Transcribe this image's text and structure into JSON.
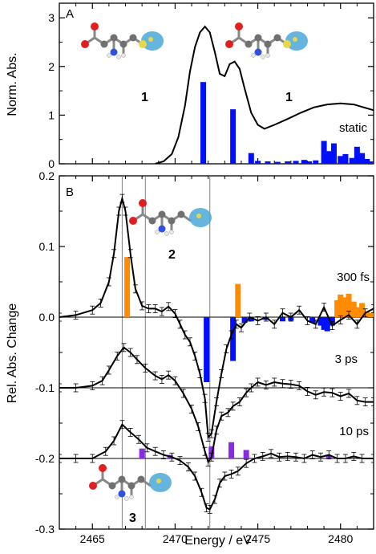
{
  "colors": {
    "line": "#000000",
    "bar_static": "#0010ff",
    "bar_300fs_neg": "#0010ff",
    "bar_300fs_pos": "#ff8c00",
    "bar_10ps": "#8a2be2",
    "guide": "#808080",
    "orbital": "#4aa8d8",
    "sulfur": "#e6d84a",
    "oxygen": "#e02020",
    "nitrogen": "#3050e0",
    "carbon": "#707070"
  },
  "chart_data": [
    {
      "panel": "A",
      "type": "line",
      "xlabel": "",
      "ylabel": "Norm. Abs.",
      "xlim": [
        2463,
        2482
      ],
      "ylim": [
        0,
        3.3
      ],
      "x_ticks": [
        2465,
        2470,
        2475,
        2480
      ],
      "y_ticks": [
        0,
        1,
        2,
        3
      ],
      "y_tick_labels": [
        "0",
        "1",
        "2",
        "3"
      ],
      "annotation_label": "static",
      "molecule_labels": [
        "1",
        "1"
      ],
      "series": [
        {
          "kind": "line",
          "points": [
            [
              2468.8,
              0.0
            ],
            [
              2469.3,
              0.05
            ],
            [
              2469.8,
              0.2
            ],
            [
              2470.2,
              0.55
            ],
            [
              2470.6,
              1.2
            ],
            [
              2470.9,
              1.9
            ],
            [
              2471.2,
              2.4
            ],
            [
              2471.5,
              2.7
            ],
            [
              2471.8,
              2.82
            ],
            [
              2472.1,
              2.7
            ],
            [
              2472.4,
              2.3
            ],
            [
              2472.7,
              1.85
            ],
            [
              2473.0,
              1.8
            ],
            [
              2473.3,
              2.05
            ],
            [
              2473.6,
              2.1
            ],
            [
              2473.9,
              1.95
            ],
            [
              2474.2,
              1.55
            ],
            [
              2474.6,
              1.05
            ],
            [
              2475.0,
              0.8
            ],
            [
              2475.4,
              0.72
            ],
            [
              2476.0,
              0.8
            ],
            [
              2476.8,
              0.92
            ],
            [
              2477.6,
              1.05
            ],
            [
              2478.4,
              1.16
            ],
            [
              2479.2,
              1.22
            ],
            [
              2480.0,
              1.24
            ],
            [
              2480.8,
              1.22
            ],
            [
              2481.5,
              1.15
            ],
            [
              2482.0,
              1.1
            ]
          ]
        },
        {
          "kind": "bar",
          "points": [
            [
              2471.7,
              1.68
            ],
            [
              2473.5,
              1.12
            ],
            [
              2474.6,
              0.22
            ],
            [
              2475.0,
              0.06
            ],
            [
              2475.6,
              0.05
            ],
            [
              2476.2,
              0.04
            ],
            [
              2476.8,
              0.05
            ],
            [
              2477.3,
              0.06
            ],
            [
              2477.8,
              0.08
            ],
            [
              2478.1,
              0.05
            ],
            [
              2478.5,
              0.07
            ],
            [
              2479.0,
              0.47
            ],
            [
              2479.3,
              0.26
            ],
            [
              2479.6,
              0.42
            ],
            [
              2480.0,
              0.16
            ],
            [
              2480.3,
              0.2
            ],
            [
              2480.7,
              0.12
            ],
            [
              2481.0,
              0.35
            ],
            [
              2481.3,
              0.22
            ],
            [
              2481.6,
              0.1
            ],
            [
              2481.9,
              0.05
            ]
          ]
        }
      ]
    },
    {
      "panel": "B",
      "type": "line",
      "xlabel": "Energy / eV",
      "ylabel": "Rel. Abs. Change",
      "xlim": [
        2463,
        2482
      ],
      "ylim": [
        -0.3,
        0.2
      ],
      "x_ticks": [
        2465,
        2470,
        2475,
        2480
      ],
      "x_tick_labels": [
        "2465",
        "2470",
        "2475",
        "2480"
      ],
      "y_ticks": [
        -0.3,
        -0.2,
        -0.1,
        0.0,
        0.1,
        0.2
      ],
      "y_tick_labels": [
        "-0.3",
        "-0.2",
        "-0.1",
        "0.0",
        "0.1",
        "0.2"
      ],
      "guide_lines_x": [
        2466.8,
        2468.2,
        2472.1
      ],
      "annotation_labels": [
        "300 fs",
        "3 ps",
        "10 ps"
      ],
      "molecule_labels": [
        "2",
        "3"
      ],
      "series": [
        {
          "kind": "line",
          "points": [
            [
              2463,
              0.0
            ],
            [
              2464,
              0.003
            ],
            [
              2465,
              0.01
            ],
            [
              2465.5,
              0.02
            ],
            [
              2466,
              0.05
            ],
            [
              2466.3,
              0.09
            ],
            [
              2466.6,
              0.15
            ],
            [
              2466.8,
              0.168
            ],
            [
              2467.0,
              0.15
            ],
            [
              2467.3,
              0.09
            ],
            [
              2467.6,
              0.04
            ],
            [
              2468.0,
              0.016
            ],
            [
              2468.4,
              0.012
            ],
            [
              2468.8,
              0.012
            ],
            [
              2469.2,
              0.008
            ],
            [
              2469.6,
              0.015
            ],
            [
              2470.0,
              0.005
            ],
            [
              2470.3,
              -0.01
            ],
            [
              2470.6,
              -0.025
            ],
            [
              2470.9,
              -0.035
            ],
            [
              2471.2,
              -0.055
            ],
            [
              2471.5,
              -0.08
            ],
            [
              2471.8,
              -0.115
            ],
            [
              2472.0,
              -0.17
            ],
            [
              2472.2,
              -0.165
            ],
            [
              2472.5,
              -0.12
            ],
            [
              2472.8,
              -0.08
            ],
            [
              2473.1,
              -0.045
            ],
            [
              2473.4,
              -0.025
            ],
            [
              2473.7,
              -0.01
            ],
            [
              2474.0,
              -0.015
            ],
            [
              2474.5,
              0.0
            ],
            [
              2475.0,
              -0.005
            ],
            [
              2475.5,
              0.0
            ],
            [
              2476.0,
              -0.01
            ],
            [
              2476.5,
              0.006
            ],
            [
              2477.0,
              0.0
            ],
            [
              2477.5,
              0.01
            ],
            [
              2478.0,
              -0.005
            ],
            [
              2478.5,
              -0.01
            ],
            [
              2479.0,
              0.014
            ],
            [
              2479.5,
              -0.012
            ],
            [
              2480.0,
              -0.004
            ],
            [
              2480.5,
              0.003
            ],
            [
              2481.0,
              -0.01
            ],
            [
              2481.5,
              0.006
            ],
            [
              2482.0,
              0.012
            ]
          ]
        },
        {
          "kind": "line",
          "points": [
            [
              2463,
              -0.1
            ],
            [
              2464,
              -0.1
            ],
            [
              2465,
              -0.097
            ],
            [
              2465.6,
              -0.09
            ],
            [
              2466.0,
              -0.075
            ],
            [
              2466.5,
              -0.055
            ],
            [
              2466.9,
              -0.043
            ],
            [
              2467.3,
              -0.05
            ],
            [
              2467.7,
              -0.06
            ],
            [
              2468.2,
              -0.072
            ],
            [
              2468.8,
              -0.083
            ],
            [
              2469.2,
              -0.088
            ],
            [
              2469.6,
              -0.082
            ],
            [
              2470.0,
              -0.09
            ],
            [
              2470.5,
              -0.108
            ],
            [
              2471.0,
              -0.13
            ],
            [
              2471.4,
              -0.155
            ],
            [
              2471.8,
              -0.19
            ],
            [
              2472.0,
              -0.205
            ],
            [
              2472.2,
              -0.198
            ],
            [
              2472.5,
              -0.16
            ],
            [
              2472.8,
              -0.14
            ],
            [
              2473.2,
              -0.135
            ],
            [
              2473.5,
              -0.126
            ],
            [
              2473.9,
              -0.12
            ],
            [
              2474.3,
              -0.107
            ],
            [
              2474.6,
              -0.1
            ],
            [
              2475.0,
              -0.092
            ],
            [
              2475.5,
              -0.096
            ],
            [
              2476.0,
              -0.092
            ],
            [
              2476.5,
              -0.094
            ],
            [
              2477.0,
              -0.095
            ],
            [
              2477.5,
              -0.097
            ],
            [
              2478.0,
              -0.105
            ],
            [
              2478.5,
              -0.11
            ],
            [
              2479.0,
              -0.106
            ],
            [
              2479.5,
              -0.107
            ],
            [
              2480.0,
              -0.112
            ],
            [
              2480.5,
              -0.108
            ],
            [
              2481.0,
              -0.118
            ],
            [
              2481.5,
              -0.12
            ],
            [
              2482.0,
              -0.12
            ]
          ]
        },
        {
          "kind": "line",
          "points": [
            [
              2463,
              -0.2
            ],
            [
              2464,
              -0.2
            ],
            [
              2465,
              -0.2
            ],
            [
              2465.8,
              -0.19
            ],
            [
              2466.3,
              -0.175
            ],
            [
              2466.8,
              -0.152
            ],
            [
              2467.3,
              -0.163
            ],
            [
              2467.8,
              -0.173
            ],
            [
              2468.3,
              -0.185
            ],
            [
              2468.8,
              -0.19
            ],
            [
              2469.3,
              -0.195
            ],
            [
              2469.8,
              -0.198
            ],
            [
              2470.3,
              -0.203
            ],
            [
              2470.8,
              -0.212
            ],
            [
              2471.2,
              -0.225
            ],
            [
              2471.6,
              -0.248
            ],
            [
              2471.9,
              -0.27
            ],
            [
              2472.1,
              -0.272
            ],
            [
              2472.4,
              -0.258
            ],
            [
              2472.7,
              -0.235
            ],
            [
              2473.0,
              -0.225
            ],
            [
              2473.4,
              -0.222
            ],
            [
              2473.8,
              -0.218
            ],
            [
              2474.3,
              -0.207
            ],
            [
              2474.8,
              -0.2
            ],
            [
              2475.3,
              -0.197
            ],
            [
              2475.8,
              -0.193
            ],
            [
              2476.3,
              -0.198
            ],
            [
              2476.8,
              -0.197
            ],
            [
              2477.3,
              -0.198
            ],
            [
              2477.8,
              -0.2
            ],
            [
              2478.3,
              -0.195
            ],
            [
              2478.8,
              -0.198
            ],
            [
              2479.3,
              -0.195
            ],
            [
              2479.8,
              -0.2
            ],
            [
              2480.3,
              -0.2
            ],
            [
              2480.8,
              -0.197
            ],
            [
              2481.3,
              -0.2
            ],
            [
              2482.0,
              -0.2
            ]
          ]
        },
        {
          "kind": "bar",
          "baseline": 0.0,
          "points": [
            [
              2467.1,
              0.085
            ],
            [
              2471.9,
              -0.092
            ],
            [
              2473.5,
              -0.062
            ],
            [
              2473.8,
              0.047
            ],
            [
              2474.2,
              -0.008
            ],
            [
              2474.6,
              -0.006
            ],
            [
              2475.5,
              -0.004
            ],
            [
              2476.5,
              -0.006
            ],
            [
              2477.0,
              -0.005
            ],
            [
              2478.3,
              -0.008
            ],
            [
              2478.8,
              -0.012
            ],
            [
              2479.0,
              -0.018
            ],
            [
              2479.2,
              -0.02
            ],
            [
              2479.5,
              -0.012
            ],
            [
              2479.8,
              0.024
            ],
            [
              2480.0,
              0.032
            ],
            [
              2480.2,
              0.028
            ],
            [
              2480.5,
              0.033
            ],
            [
              2480.8,
              0.022
            ],
            [
              2481.0,
              0.014
            ],
            [
              2481.3,
              0.02
            ],
            [
              2481.6,
              0.008
            ],
            [
              2481.9,
              0.006
            ]
          ]
        },
        {
          "kind": "bar",
          "baseline": -0.2,
          "points": [
            [
              2468.0,
              -0.186
            ],
            [
              2469.7,
              -0.195
            ],
            [
              2472.2,
              -0.183
            ],
            [
              2473.4,
              -0.177
            ],
            [
              2474.3,
              -0.188
            ],
            [
              2479.3,
              -0.196
            ]
          ]
        }
      ]
    }
  ]
}
